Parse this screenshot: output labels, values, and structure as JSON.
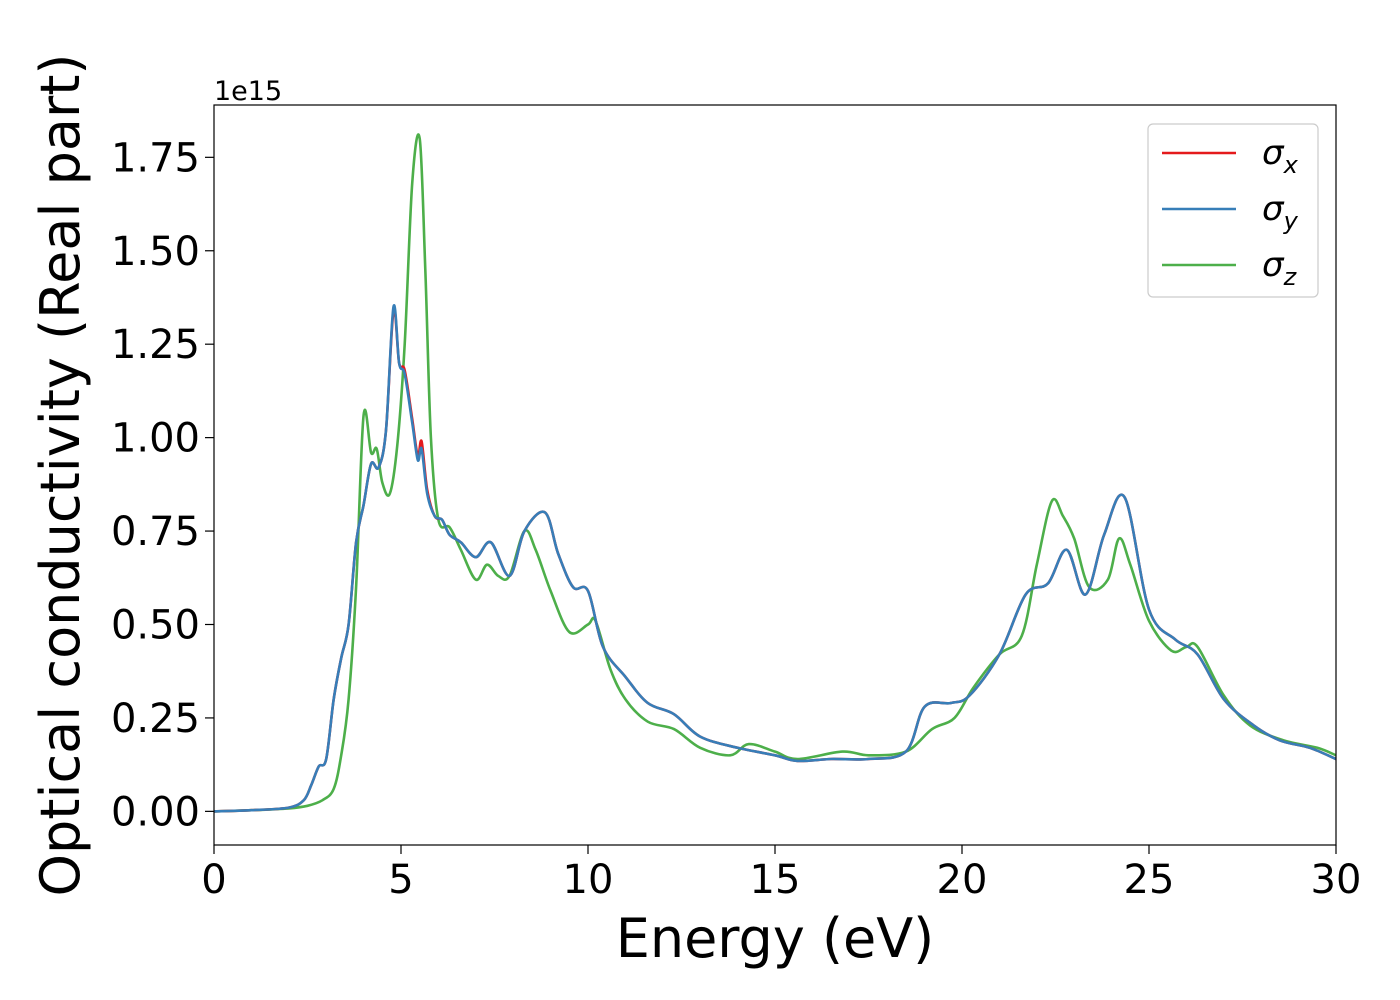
{
  "chart_data": {
    "type": "line",
    "xlabel": "Energy (eV)",
    "ylabel": "Optical conductivity (Real part)",
    "y_offset_label": "1e15",
    "xlim": [
      0,
      30
    ],
    "ylim": [
      -0.09,
      1.89
    ],
    "x_ticks": [
      0,
      5,
      10,
      15,
      20,
      25,
      30
    ],
    "x_tick_labels": [
      "0",
      "5",
      "10",
      "15",
      "20",
      "25",
      "30"
    ],
    "y_ticks": [
      0,
      0.25,
      0.5,
      0.75,
      1.0,
      1.25,
      1.5,
      1.75
    ],
    "y_tick_labels": [
      "0.00",
      "0.25",
      "0.50",
      "0.75",
      "1.00",
      "1.25",
      "1.50",
      "1.75"
    ],
    "grid": false,
    "legend_position": "top-right",
    "series": [
      {
        "name": "σ_x",
        "legend_base": "σ",
        "legend_sub": "x",
        "color": "#e41a1c",
        "x": [
          0,
          1,
          2,
          2.4,
          2.6,
          2.8,
          3.0,
          3.2,
          3.4,
          3.6,
          3.8,
          4.0,
          4.2,
          4.4,
          4.6,
          4.8,
          4.95,
          5.1,
          5.3,
          5.45,
          5.55,
          5.7,
          5.9,
          6.1,
          6.3,
          6.6,
          7.0,
          7.4,
          7.9,
          8.3,
          8.85,
          9.2,
          9.6,
          10.0,
          10.4,
          11.0,
          11.6,
          12.3,
          13.0,
          14.0,
          15.0,
          15.6,
          16.5,
          17.5,
          18.5,
          19.0,
          19.7,
          20.2,
          21.0,
          21.7,
          22.3,
          22.8,
          23.3,
          23.8,
          24.35,
          25.0,
          25.7,
          26.3,
          27.0,
          27.8,
          28.5,
          29.3,
          30.0
        ],
        "y": [
          0,
          0.003,
          0.01,
          0.03,
          0.07,
          0.12,
          0.14,
          0.3,
          0.41,
          0.5,
          0.72,
          0.82,
          0.93,
          0.92,
          1.02,
          1.34,
          1.2,
          1.18,
          1.05,
          0.95,
          0.99,
          0.86,
          0.79,
          0.78,
          0.74,
          0.72,
          0.68,
          0.72,
          0.63,
          0.75,
          0.8,
          0.69,
          0.6,
          0.59,
          0.44,
          0.36,
          0.29,
          0.26,
          0.2,
          0.17,
          0.15,
          0.135,
          0.14,
          0.14,
          0.16,
          0.28,
          0.29,
          0.31,
          0.42,
          0.58,
          0.61,
          0.7,
          0.58,
          0.74,
          0.84,
          0.54,
          0.46,
          0.42,
          0.3,
          0.23,
          0.19,
          0.17,
          0.14
        ]
      },
      {
        "name": "σ_y",
        "legend_base": "σ",
        "legend_sub": "y",
        "color": "#377eb8",
        "x": [
          0,
          1,
          2,
          2.4,
          2.6,
          2.8,
          3.0,
          3.2,
          3.4,
          3.6,
          3.8,
          4.0,
          4.2,
          4.4,
          4.6,
          4.8,
          4.95,
          5.1,
          5.3,
          5.45,
          5.55,
          5.7,
          5.9,
          6.1,
          6.3,
          6.6,
          7.0,
          7.4,
          7.9,
          8.3,
          8.85,
          9.2,
          9.6,
          10.0,
          10.4,
          11.0,
          11.6,
          12.3,
          13.0,
          14.0,
          15.0,
          15.6,
          16.5,
          17.5,
          18.5,
          19.0,
          19.7,
          20.2,
          21.0,
          21.7,
          22.3,
          22.8,
          23.3,
          23.8,
          24.35,
          25.0,
          25.7,
          26.3,
          27.0,
          27.8,
          28.5,
          29.3,
          30.0
        ],
        "y": [
          0,
          0.003,
          0.01,
          0.03,
          0.07,
          0.12,
          0.14,
          0.3,
          0.41,
          0.5,
          0.72,
          0.82,
          0.93,
          0.92,
          1.02,
          1.35,
          1.2,
          1.17,
          1.04,
          0.94,
          0.97,
          0.85,
          0.79,
          0.78,
          0.74,
          0.72,
          0.68,
          0.72,
          0.63,
          0.75,
          0.8,
          0.69,
          0.6,
          0.59,
          0.44,
          0.36,
          0.29,
          0.26,
          0.2,
          0.17,
          0.15,
          0.135,
          0.14,
          0.14,
          0.16,
          0.28,
          0.29,
          0.31,
          0.42,
          0.58,
          0.61,
          0.7,
          0.58,
          0.74,
          0.84,
          0.54,
          0.46,
          0.42,
          0.3,
          0.23,
          0.19,
          0.17,
          0.14
        ]
      },
      {
        "name": "σ_z",
        "legend_base": "σ",
        "legend_sub": "z",
        "color": "#4daf4a",
        "x": [
          0,
          1,
          2,
          2.5,
          2.9,
          3.2,
          3.4,
          3.6,
          3.8,
          4.0,
          4.2,
          4.35,
          4.5,
          4.7,
          4.9,
          5.1,
          5.3,
          5.5,
          5.65,
          5.8,
          6.0,
          6.3,
          6.6,
          7.0,
          7.3,
          7.6,
          7.9,
          8.3,
          8.6,
          9.0,
          9.5,
          10.0,
          10.2,
          10.6,
          11.0,
          11.6,
          12.3,
          13.0,
          13.8,
          14.3,
          15.0,
          15.6,
          16.8,
          17.5,
          18.5,
          19.2,
          19.8,
          20.3,
          21.0,
          21.6,
          22.0,
          22.4,
          22.7,
          23.0,
          23.4,
          23.9,
          24.2,
          24.5,
          25.0,
          25.6,
          26.0,
          26.3,
          27.0,
          27.7,
          28.6,
          29.5,
          30.0
        ],
        "y": [
          0,
          0.003,
          0.008,
          0.015,
          0.03,
          0.06,
          0.15,
          0.3,
          0.6,
          1.06,
          0.96,
          0.97,
          0.88,
          0.85,
          0.98,
          1.25,
          1.68,
          1.8,
          1.45,
          1.0,
          0.78,
          0.76,
          0.7,
          0.62,
          0.66,
          0.63,
          0.63,
          0.75,
          0.7,
          0.59,
          0.48,
          0.5,
          0.51,
          0.38,
          0.3,
          0.24,
          0.22,
          0.17,
          0.15,
          0.18,
          0.16,
          0.14,
          0.16,
          0.15,
          0.16,
          0.22,
          0.25,
          0.33,
          0.42,
          0.47,
          0.66,
          0.83,
          0.79,
          0.73,
          0.6,
          0.62,
          0.73,
          0.66,
          0.51,
          0.43,
          0.44,
          0.44,
          0.31,
          0.23,
          0.19,
          0.17,
          0.15
        ]
      }
    ]
  }
}
